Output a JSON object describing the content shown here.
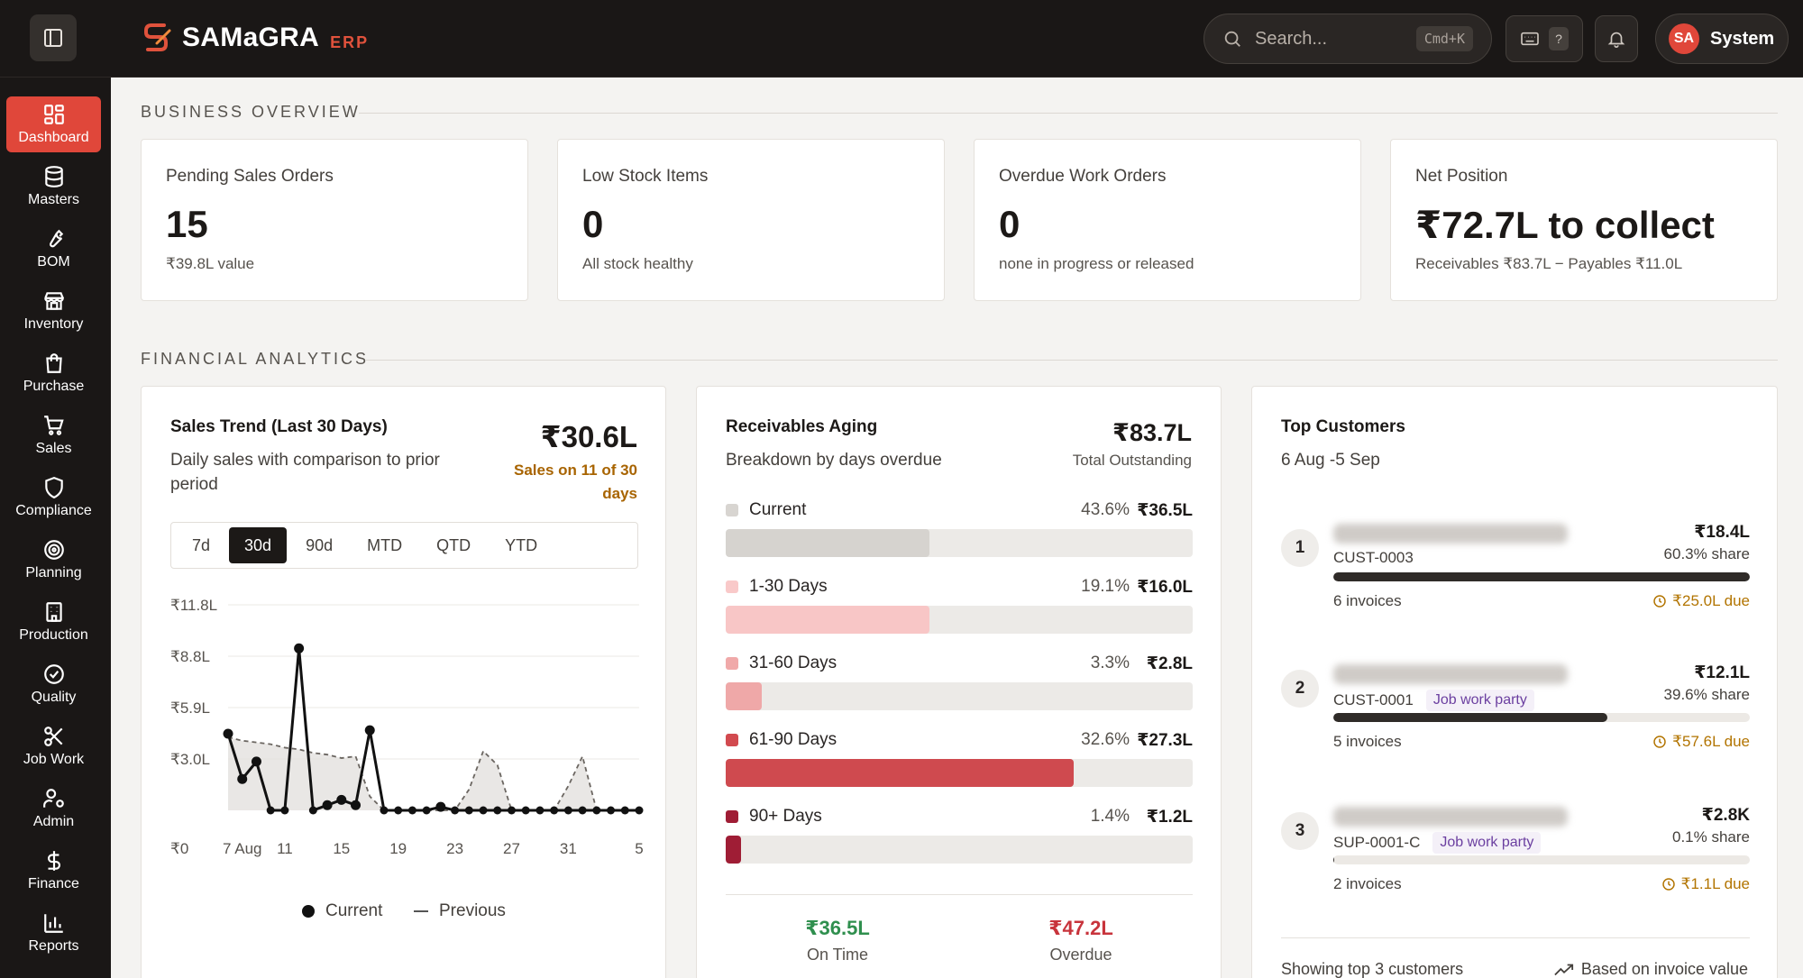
{
  "app": {
    "name": "SAMaGRA",
    "suffix": "ERP"
  },
  "search": {
    "placeholder": "Search...",
    "shortcut": "Cmd+K"
  },
  "help_key": "?",
  "user": {
    "initials": "SA",
    "name": "System"
  },
  "nav": [
    {
      "label": "Dashboard",
      "icon": "dashboard-icon",
      "active": true
    },
    {
      "label": "Masters",
      "icon": "database-icon"
    },
    {
      "label": "BOM",
      "icon": "wrench-icon"
    },
    {
      "label": "Inventory",
      "icon": "store-icon"
    },
    {
      "label": "Purchase",
      "icon": "shopping-bag-icon"
    },
    {
      "label": "Sales",
      "icon": "cart-icon"
    },
    {
      "label": "Compliance",
      "icon": "shield-icon"
    },
    {
      "label": "Planning",
      "icon": "target-icon"
    },
    {
      "label": "Production",
      "icon": "factory-icon"
    },
    {
      "label": "Quality",
      "icon": "check-circle-icon"
    },
    {
      "label": "Job Work",
      "icon": "scissors-icon"
    },
    {
      "label": "Admin",
      "icon": "user-cog-icon"
    },
    {
      "label": "Finance",
      "icon": "dollar-icon"
    },
    {
      "label": "Reports",
      "icon": "bar-chart-icon"
    }
  ],
  "business_overview": {
    "title": "BUSINESS OVERVIEW",
    "cards": [
      {
        "label": "Pending Sales Orders",
        "value": "15",
        "sub": "₹39.8L value"
      },
      {
        "label": "Low Stock Items",
        "value": "0",
        "sub": "All stock healthy"
      },
      {
        "label": "Overdue Work Orders",
        "value": "0",
        "sub": "none in progress or released"
      },
      {
        "label": "Net Position",
        "value": "₹72.7L to collect",
        "sub": "Receivables ₹83.7L − Payables ₹11.0L"
      }
    ]
  },
  "financial_analytics": {
    "title": "FINANCIAL ANALYTICS",
    "sales_trend": {
      "title": "Sales Trend (Last 30 Days)",
      "subtitle": "Daily sales with comparison to prior period",
      "total": "₹30.6L",
      "note": "Sales on 11 of 30 days",
      "ranges": [
        "7d",
        "30d",
        "90d",
        "MTD",
        "QTD",
        "YTD"
      ],
      "active_range": "30d",
      "legend_current": "Current",
      "legend_previous": "Previous"
    },
    "receivables": {
      "title": "Receivables Aging",
      "subtitle": "Breakdown by days overdue",
      "total": "₹83.7L",
      "total_label": "Total Outstanding",
      "buckets": [
        {
          "label": "Current",
          "pct": "43.6%",
          "amount": "₹36.5L",
          "share": 43.6,
          "color": "#d8d5d1",
          "fill": "#d6d3cf"
        },
        {
          "label": "1-30 Days",
          "pct": "19.1%",
          "amount": "₹16.0L",
          "share": 43.6,
          "color": "#f9c9c9",
          "fill": "#f8c6c6"
        },
        {
          "label": "31-60 Days",
          "pct": "3.3%",
          "amount": "₹2.8L",
          "share": 7.7,
          "color": "#f0a9a9",
          "fill": "#efa8a8"
        },
        {
          "label": "61-90 Days",
          "pct": "32.6%",
          "amount": "₹27.3L",
          "share": 74.6,
          "color": "#d24a4f",
          "fill": "#cf4a4f"
        },
        {
          "label": "90+ Days",
          "pct": "1.4%",
          "amount": "₹1.2L",
          "share": 3.2,
          "color": "#9f1d35",
          "fill": "#9f1d35"
        }
      ],
      "on_time_value": "₹36.5L",
      "on_time_label": "On Time",
      "overdue_value": "₹47.2L",
      "overdue_label": "Overdue",
      "on_time_color": "#2f8f4e",
      "overdue_color": "#c8343c"
    },
    "top_customers": {
      "title": "Top Customers",
      "period": "6 Aug -5 Sep",
      "customers": [
        {
          "rank": "1",
          "id": "CUST-0003",
          "tag": "",
          "amount": "₹18.4L",
          "share": "60.3% share",
          "share_pct": 100,
          "invoices": "6 invoices",
          "due": "₹25.0L due"
        },
        {
          "rank": "2",
          "id": "CUST-0001",
          "tag": "Job work party",
          "amount": "₹12.1L",
          "share": "39.6% share",
          "share_pct": 65.8,
          "invoices": "5 invoices",
          "due": "₹57.6L due"
        },
        {
          "rank": "3",
          "id": "SUP-0001-C",
          "tag": "Job work party",
          "amount": "₹2.8K",
          "share": "0.1% share",
          "share_pct": 0.3,
          "invoices": "2 invoices",
          "due": "₹1.1L due"
        }
      ],
      "footer_left": "Showing top 3 customers",
      "footer_right": "Based on invoice value"
    }
  },
  "chart_data": {
    "type": "line",
    "title": "Sales Trend (Last 30 Days)",
    "unit": "₹L",
    "x": [
      "7 Aug",
      "8",
      "9",
      "10",
      "11",
      "12",
      "13",
      "14",
      "15",
      "16",
      "17",
      "18",
      "19",
      "20",
      "21",
      "22",
      "23",
      "24",
      "25",
      "26",
      "27",
      "28",
      "29",
      "30",
      "31",
      "1",
      "2",
      "3",
      "4",
      "5"
    ],
    "xticks": [
      "7 Aug",
      "11",
      "15",
      "19",
      "23",
      "27",
      "31",
      "5"
    ],
    "yticks": [
      "₹0",
      "₹3.0L",
      "₹5.9L",
      "₹8.8L",
      "₹11.8L"
    ],
    "ylim": [
      0,
      11.8
    ],
    "series": [
      {
        "name": "Current",
        "values": [
          4.4,
          1.8,
          2.8,
          0,
          0,
          9.3,
          0,
          0.3,
          0.6,
          0.3,
          4.6,
          0,
          0,
          0,
          0,
          0.2,
          0,
          0,
          0,
          0,
          0,
          0,
          0,
          0,
          0,
          0,
          0,
          0,
          0,
          0
        ]
      },
      {
        "name": "Previous",
        "values": [
          4.2,
          4.0,
          3.9,
          3.8,
          3.6,
          3.5,
          3.3,
          3.2,
          3.0,
          3.1,
          0.8,
          0,
          0,
          0,
          0,
          0,
          0,
          1.2,
          3.4,
          2.6,
          0,
          0,
          0,
          0,
          1.4,
          3.1,
          0,
          0,
          0,
          0
        ]
      }
    ],
    "grid": true,
    "legend": "bottom"
  }
}
